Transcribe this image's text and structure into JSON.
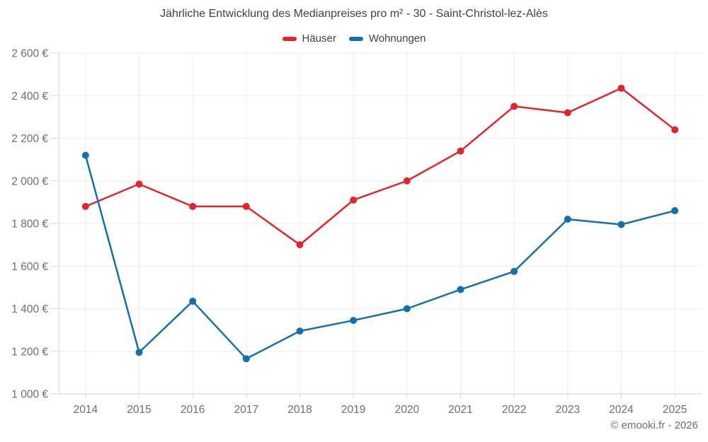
{
  "title": "Jährliche Entwicklung des Medianpreises pro m² - 30 - Saint-Christol-lez-Alès",
  "footer": "© emooki.fr - 2026",
  "legend": [
    {
      "id": "haeuser",
      "label": "Häuser",
      "color": "#e2252b"
    },
    {
      "id": "wohnungen",
      "label": "Wohnungen",
      "color": "#146fad"
    }
  ],
  "colors": {
    "haeuser": "#e2252b",
    "wohnungen": "#146fad",
    "gridline": "#ededed",
    "axis_line": "#d2d2d2",
    "tick_mark": "#d9d9d9",
    "title_text": "#424242",
    "axis_text": "#6e6e6e"
  },
  "chart_data": {
    "type": "line",
    "title": "Jährliche Entwicklung des Medianpreises pro m² - 30 - Saint-Christol-lez-Alès",
    "categories": [
      "2014",
      "2015",
      "2016",
      "2017",
      "2018",
      "2019",
      "2020",
      "2021",
      "2022",
      "2023",
      "2024",
      "2025"
    ],
    "series": [
      {
        "name": "Häuser",
        "color": "#e2252b",
        "values": [
          1880,
          1985,
          1880,
          1880,
          1700,
          1910,
          2000,
          2140,
          2350,
          2320,
          2435,
          2240
        ]
      },
      {
        "name": "Wohnungen",
        "color": "#146fad",
        "values": [
          2120,
          1195,
          1435,
          1165,
          1295,
          1345,
          1400,
          1490,
          1575,
          1820,
          1795,
          1860
        ]
      }
    ],
    "xlabel": "",
    "ylabel": "",
    "ylim": [
      1000,
      2600
    ],
    "ytick_step": 200,
    "ytick_labels": [
      "1 000 €",
      "1 200 €",
      "1 400 €",
      "1 600 €",
      "1 800 €",
      "2 000 €",
      "2 200 €",
      "2 400 €",
      "2 600 €"
    ],
    "grid": true,
    "legend_position": "top",
    "marker": "circle"
  }
}
